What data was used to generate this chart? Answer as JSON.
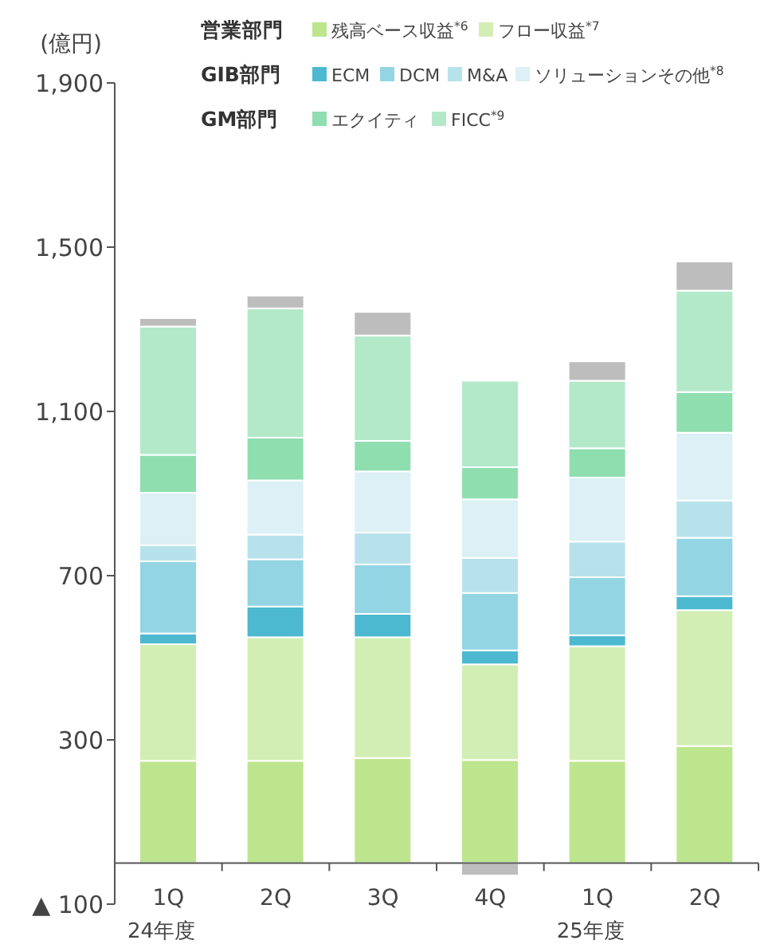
{
  "chart_data": {
    "type": "bar",
    "stacked": true,
    "ylabel": "(億円)",
    "legend": "top",
    "categories": [
      "1Q",
      "2Q",
      "3Q",
      "4Q",
      "1Q",
      "2Q"
    ],
    "ylim": [
      -100,
      1900
    ],
    "yticks": [
      {
        "value": -100,
        "label": "▲ 100"
      },
      300,
      700,
      {
        "value": 1100,
        "label": "1,100"
      },
      {
        "value": 1500,
        "label": "1,500"
      },
      {
        "value": 1900,
        "label": "1,900"
      }
    ],
    "annotations": [
      "営業部門",
      "GIB部門",
      "GM部門",
      "24年度",
      "25年度"
    ],
    "series": [
      {
        "name": "残高ベース収益$^{*6}$",
        "color": "#bde58e",
        "values": [
          249,
          249,
          256,
          251,
          249,
          285
        ]
      },
      {
        "name": "フロー収益$^{*7}$",
        "color": "#d3eeb4",
        "values": [
          284,
          301,
          294,
          233,
          279,
          331
        ]
      },
      {
        "name": "ECM",
        "color": "#4cb9d0",
        "values": [
          26,
          75,
          57,
          34,
          27,
          34
        ]
      },
      {
        "name": "DCM",
        "color": "#93d5e3",
        "values": [
          176,
          115,
          120,
          140,
          141,
          142
        ]
      },
      {
        "name": "M&A",
        "color": "#b8e2eb",
        "values": [
          39,
          60,
          78,
          85,
          87,
          91
        ]
      },
      {
        "name": "ソリューションその他$^{*8}$",
        "color": "#dcf0f5",
        "values": [
          128,
          132,
          149,
          143,
          156,
          165
        ]
      },
      {
        "name": "エクイティ",
        "color": "#8fdeb0",
        "values": [
          92,
          104,
          74,
          78,
          71,
          99
        ]
      },
      {
        "name": "FICC$^{*9}$",
        "color": "#b3e9c9",
        "values": [
          313,
          315,
          257,
          211,
          165,
          247
        ]
      },
      {
        "color": "#bdbdbd",
        "values": [
          20,
          31,
          57,
          -30,
          47,
          71
        ]
      }
    ]
  }
}
